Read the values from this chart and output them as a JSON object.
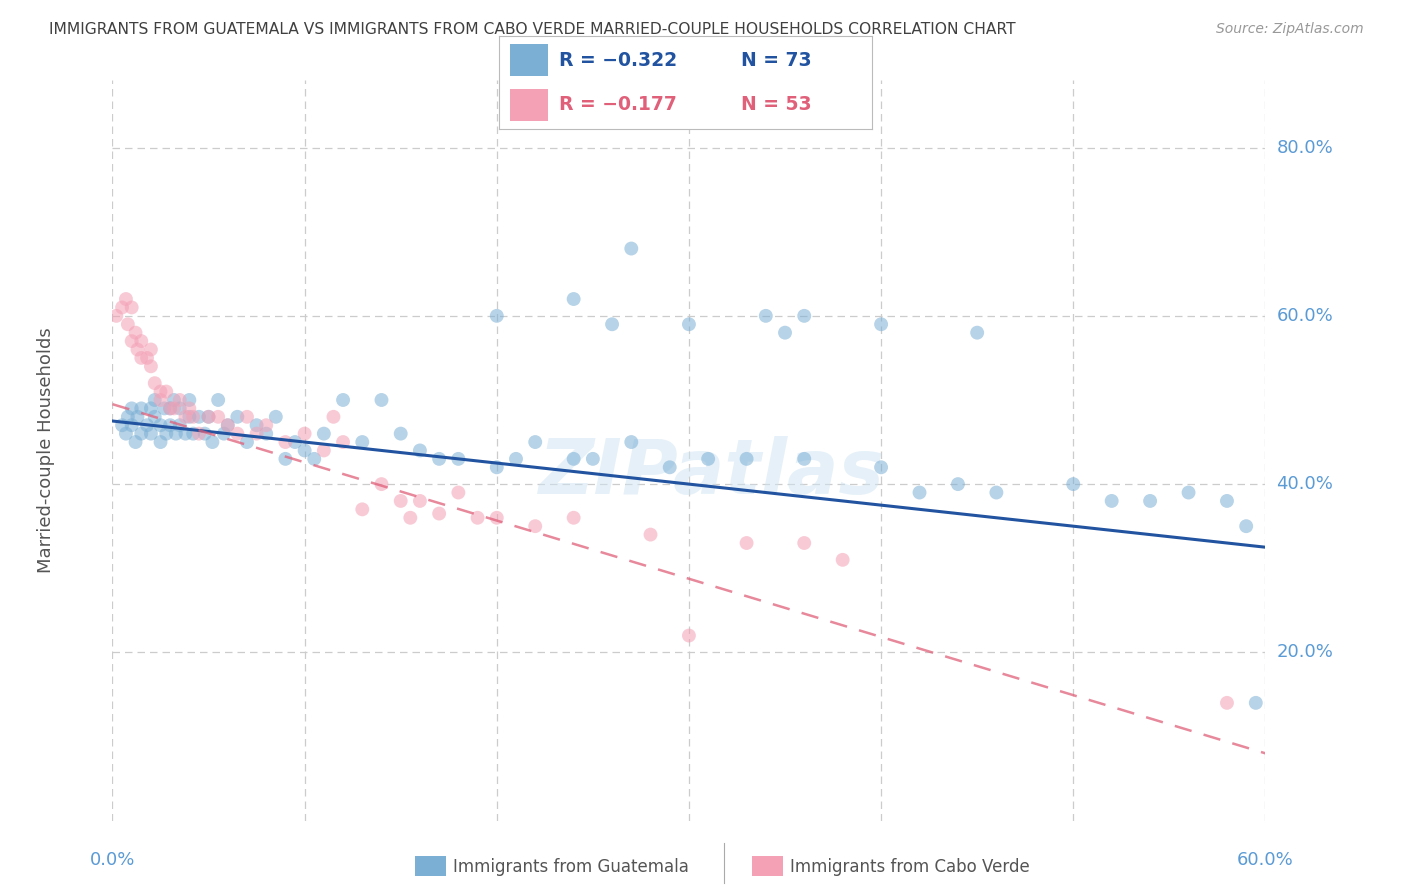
{
  "title": "IMMIGRANTS FROM GUATEMALA VS IMMIGRANTS FROM CABO VERDE MARRIED-COUPLE HOUSEHOLDS CORRELATION CHART",
  "source": "Source: ZipAtlas.com",
  "ylabel": "Married-couple Households",
  "xlabel_bottom_left": "0.0%",
  "xlabel_bottom_right": "60.0%",
  "xlim": [
    0.0,
    0.6
  ],
  "ylim": [
    0.0,
    0.88
  ],
  "yticks": [
    0.2,
    0.4,
    0.6,
    0.8
  ],
  "ytick_labels": [
    "20.0%",
    "40.0%",
    "60.0%",
    "80.0%"
  ],
  "xticks": [
    0.0,
    0.1,
    0.2,
    0.3,
    0.4,
    0.5,
    0.6
  ],
  "legend_blue_R": "R = −0.322",
  "legend_blue_N": "N = 73",
  "legend_pink_R": "R = −0.177",
  "legend_pink_N": "N = 53",
  "blue_color": "#7bafd4",
  "pink_color": "#f4a0b5",
  "blue_line_color": "#2153a0",
  "pink_line_color": "#e0607a",
  "watermark": "ZIPatlas",
  "background_color": "#ffffff",
  "grid_color": "#cccccc",
  "axis_label_color": "#5b9bd5",
  "title_color": "#404040",
  "scatter_alpha": 0.55,
  "scatter_size": 100,
  "blue_line_x": [
    0.0,
    0.6
  ],
  "blue_line_y_start": 0.475,
  "blue_line_y_end": 0.325,
  "pink_line_x": [
    0.0,
    0.6
  ],
  "pink_line_y_start": 0.495,
  "pink_line_y_end": 0.08,
  "blue_scatter_x": [
    0.005,
    0.007,
    0.008,
    0.01,
    0.01,
    0.012,
    0.013,
    0.015,
    0.015,
    0.018,
    0.02,
    0.02,
    0.022,
    0.022,
    0.025,
    0.025,
    0.027,
    0.028,
    0.03,
    0.03,
    0.032,
    0.033,
    0.035,
    0.035,
    0.038,
    0.04,
    0.04,
    0.042,
    0.045,
    0.048,
    0.05,
    0.052,
    0.055,
    0.058,
    0.06,
    0.065,
    0.07,
    0.075,
    0.08,
    0.085,
    0.09,
    0.095,
    0.1,
    0.105,
    0.11,
    0.12,
    0.13,
    0.14,
    0.15,
    0.16,
    0.17,
    0.18,
    0.2,
    0.21,
    0.22,
    0.24,
    0.25,
    0.27,
    0.29,
    0.31,
    0.33,
    0.36,
    0.4,
    0.42,
    0.44,
    0.46,
    0.5,
    0.52,
    0.54,
    0.56,
    0.58,
    0.59,
    0.595
  ],
  "blue_scatter_y": [
    0.47,
    0.46,
    0.48,
    0.47,
    0.49,
    0.45,
    0.48,
    0.46,
    0.49,
    0.47,
    0.49,
    0.46,
    0.48,
    0.5,
    0.45,
    0.47,
    0.49,
    0.46,
    0.47,
    0.49,
    0.5,
    0.46,
    0.47,
    0.49,
    0.46,
    0.48,
    0.5,
    0.46,
    0.48,
    0.46,
    0.48,
    0.45,
    0.5,
    0.46,
    0.47,
    0.48,
    0.45,
    0.47,
    0.46,
    0.48,
    0.43,
    0.45,
    0.44,
    0.43,
    0.46,
    0.5,
    0.45,
    0.5,
    0.46,
    0.44,
    0.43,
    0.43,
    0.42,
    0.43,
    0.45,
    0.43,
    0.43,
    0.45,
    0.42,
    0.43,
    0.43,
    0.43,
    0.42,
    0.39,
    0.4,
    0.39,
    0.4,
    0.38,
    0.38,
    0.39,
    0.38,
    0.35,
    0.14
  ],
  "blue_scatter_x_high": [
    0.2,
    0.24,
    0.26,
    0.27,
    0.3,
    0.34,
    0.35,
    0.36,
    0.4,
    0.45
  ],
  "blue_scatter_y_high": [
    0.6,
    0.62,
    0.59,
    0.68,
    0.59,
    0.6,
    0.58,
    0.6,
    0.59,
    0.58
  ],
  "pink_scatter_x": [
    0.002,
    0.005,
    0.007,
    0.008,
    0.01,
    0.01,
    0.012,
    0.013,
    0.015,
    0.015,
    0.018,
    0.02,
    0.02,
    0.022,
    0.025,
    0.025,
    0.028,
    0.03,
    0.032,
    0.035,
    0.038,
    0.04,
    0.042,
    0.045,
    0.05,
    0.055,
    0.06,
    0.065,
    0.07,
    0.075,
    0.08,
    0.09,
    0.1,
    0.11,
    0.115,
    0.12,
    0.13,
    0.14,
    0.15,
    0.155,
    0.16,
    0.17,
    0.18,
    0.19,
    0.2,
    0.22,
    0.24,
    0.28,
    0.3,
    0.33,
    0.36,
    0.38,
    0.58
  ],
  "pink_scatter_y": [
    0.6,
    0.61,
    0.62,
    0.59,
    0.61,
    0.57,
    0.58,
    0.56,
    0.57,
    0.55,
    0.55,
    0.54,
    0.56,
    0.52,
    0.5,
    0.51,
    0.51,
    0.49,
    0.49,
    0.5,
    0.48,
    0.49,
    0.48,
    0.46,
    0.48,
    0.48,
    0.47,
    0.46,
    0.48,
    0.46,
    0.47,
    0.45,
    0.46,
    0.44,
    0.48,
    0.45,
    0.37,
    0.4,
    0.38,
    0.36,
    0.38,
    0.365,
    0.39,
    0.36,
    0.36,
    0.35,
    0.36,
    0.34,
    0.22,
    0.33,
    0.33,
    0.31,
    0.14
  ]
}
